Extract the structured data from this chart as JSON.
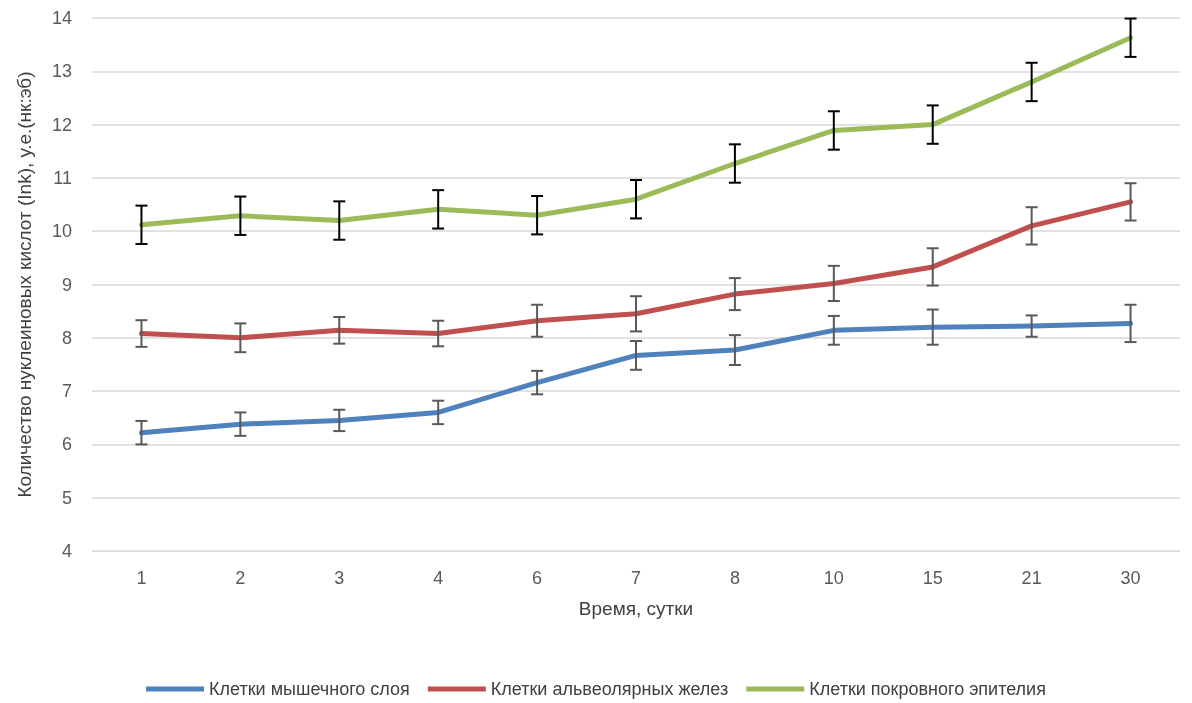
{
  "chart_data": {
    "type": "line",
    "xlabel": "Время, сутки",
    "ylabel": "Количество нуклеиновых кислот (Ink), у.е.(нк:эб)",
    "categories": [
      "1",
      "2",
      "3",
      "4",
      "6",
      "7",
      "8",
      "10",
      "15",
      "21",
      "30"
    ],
    "series": [
      {
        "name": "Клетки мышечного слоя",
        "color": "#4f81bd",
        "values": [
          6.22,
          6.38,
          6.45,
          6.6,
          7.16,
          7.67,
          7.77,
          8.14,
          8.2,
          8.22,
          8.27
        ],
        "errors": [
          0.22,
          0.22,
          0.2,
          0.22,
          0.22,
          0.27,
          0.28,
          0.27,
          0.33,
          0.2,
          0.35
        ]
      },
      {
        "name": "Клетки альвеолярных желез",
        "color": "#c0504d",
        "values": [
          8.08,
          8.0,
          8.14,
          8.08,
          8.32,
          8.45,
          8.82,
          9.02,
          9.33,
          10.1,
          10.55
        ],
        "errors": [
          0.25,
          0.27,
          0.25,
          0.24,
          0.3,
          0.33,
          0.3,
          0.33,
          0.35,
          0.35,
          0.35
        ]
      },
      {
        "name": "Клетки покровного эпителия",
        "color": "#9bbb59",
        "values": [
          10.12,
          10.29,
          10.2,
          10.41,
          10.3,
          10.6,
          11.27,
          11.89,
          12.0,
          12.8,
          13.63
        ],
        "errors": [
          0.36,
          0.36,
          0.36,
          0.36,
          0.36,
          0.36,
          0.36,
          0.36,
          0.36,
          0.36,
          0.36
        ]
      }
    ],
    "ylim": [
      4,
      14
    ],
    "yticks": [
      4,
      5,
      6,
      7,
      8,
      9,
      10,
      11,
      12,
      13,
      14
    ],
    "grid": "y",
    "legend": "bottom",
    "marker": "none",
    "line_style": "solid"
  }
}
